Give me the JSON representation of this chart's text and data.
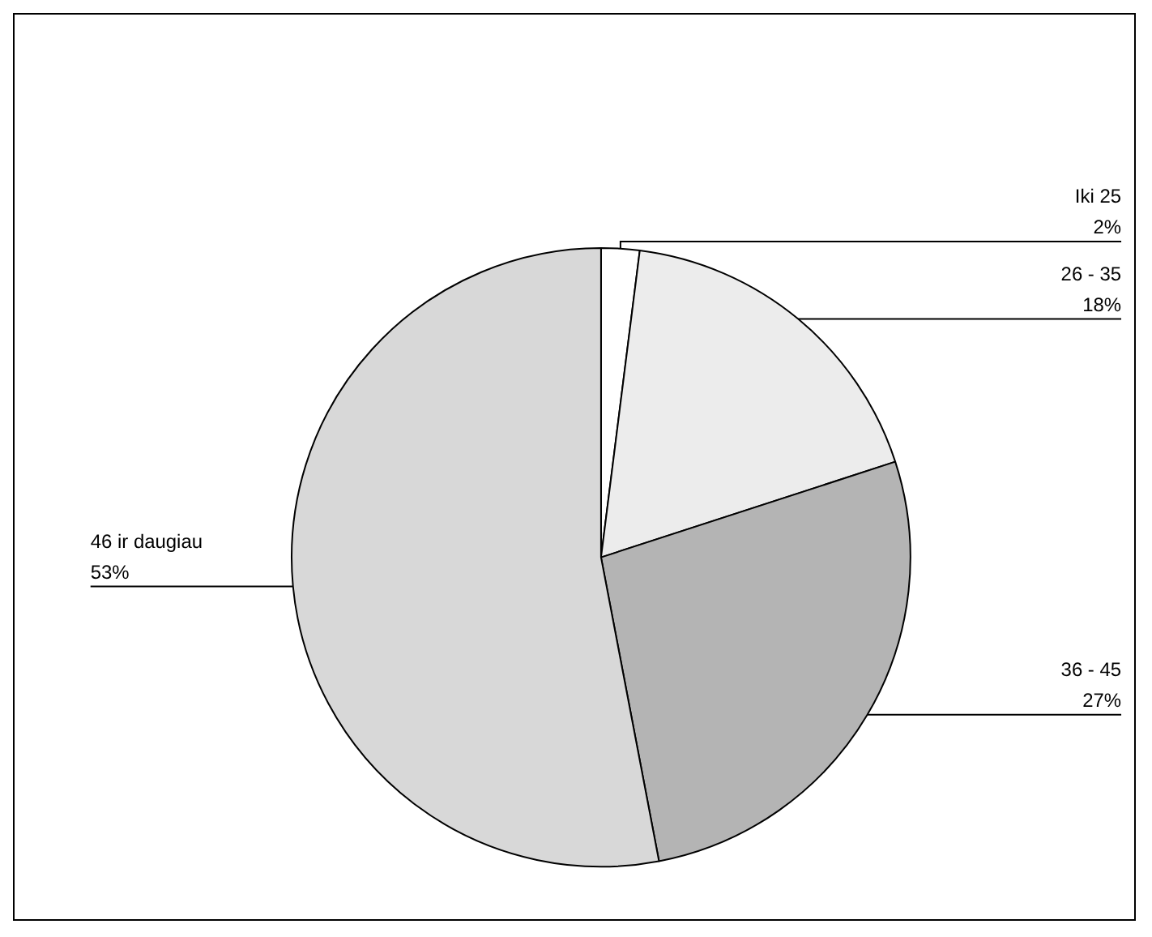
{
  "chart_data": {
    "type": "pie",
    "categories": [
      "Iki 25",
      "26 - 35",
      "36 - 45",
      "46 ir daugiau"
    ],
    "values": [
      2,
      18,
      27,
      53
    ],
    "colors": [
      "#ffffff",
      "#ececec",
      "#b4b4b4",
      "#d8d8d8"
    ],
    "value_labels": [
      "2%",
      "18%",
      "27%",
      "53%"
    ],
    "legend": false
  }
}
